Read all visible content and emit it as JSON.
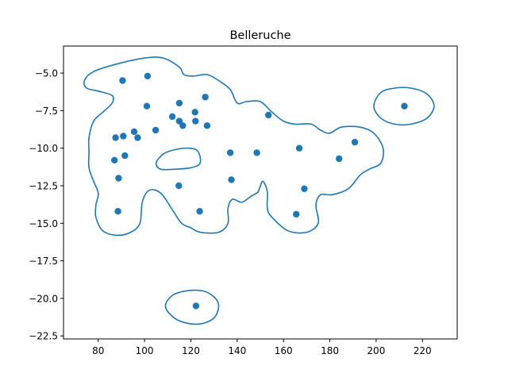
{
  "chart_data": {
    "type": "scatter",
    "title": "Belleruche",
    "xlabel": "",
    "ylabel": "",
    "xlim": [
      65,
      235
    ],
    "ylim": [
      -22.7,
      -3.2
    ],
    "xticks": [
      80,
      100,
      120,
      140,
      160,
      180,
      200,
      220
    ],
    "xtick_labels": [
      "80",
      "100",
      "120",
      "140",
      "160",
      "180",
      "200",
      "220"
    ],
    "yticks": [
      -5.0,
      -7.5,
      -10.0,
      -12.5,
      -15.0,
      -17.5,
      -20.0,
      -22.5
    ],
    "ytick_labels": [
      "−5.0",
      "−7.5",
      "−10.0",
      "−12.5",
      "−15.0",
      "−17.5",
      "−20.0",
      "−22.5"
    ],
    "grid": false,
    "colors": {
      "series": "#1f77b4"
    },
    "points": [
      {
        "x": 90.5,
        "y": -5.5
      },
      {
        "x": 101.3,
        "y": -5.2
      },
      {
        "x": 101.0,
        "y": -7.2
      },
      {
        "x": 115.0,
        "y": -7.0
      },
      {
        "x": 126.2,
        "y": -6.6
      },
      {
        "x": 112.0,
        "y": -7.9
      },
      {
        "x": 121.8,
        "y": -7.6
      },
      {
        "x": 122.0,
        "y": -8.2
      },
      {
        "x": 115.0,
        "y": -8.2
      },
      {
        "x": 116.5,
        "y": -8.5
      },
      {
        "x": 127.0,
        "y": -8.5
      },
      {
        "x": 104.8,
        "y": -8.8
      },
      {
        "x": 95.5,
        "y": -8.9
      },
      {
        "x": 97.0,
        "y": -9.3
      },
      {
        "x": 90.8,
        "y": -9.2
      },
      {
        "x": 87.5,
        "y": -9.3
      },
      {
        "x": 91.5,
        "y": -10.5
      },
      {
        "x": 87.0,
        "y": -10.8
      },
      {
        "x": 88.8,
        "y": -12.0
      },
      {
        "x": 114.8,
        "y": -12.5
      },
      {
        "x": 137.0,
        "y": -10.3
      },
      {
        "x": 148.5,
        "y": -10.3
      },
      {
        "x": 137.5,
        "y": -12.1
      },
      {
        "x": 153.5,
        "y": -7.8
      },
      {
        "x": 166.8,
        "y": -10.0
      },
      {
        "x": 184.0,
        "y": -10.7
      },
      {
        "x": 190.8,
        "y": -9.6
      },
      {
        "x": 169.0,
        "y": -12.7
      },
      {
        "x": 165.5,
        "y": -14.4
      },
      {
        "x": 88.5,
        "y": -14.2
      },
      {
        "x": 123.8,
        "y": -14.2
      },
      {
        "x": 212.2,
        "y": -7.2
      },
      {
        "x": 122.2,
        "y": -20.5
      }
    ],
    "contours": [
      [
        [
          74,
          -5.5
        ],
        [
          78,
          -4.9
        ],
        [
          88,
          -4.4
        ],
        [
          100,
          -4.0
        ],
        [
          108,
          -4.0
        ],
        [
          115,
          -4.6
        ],
        [
          117,
          -5.1
        ],
        [
          121,
          -5.2
        ],
        [
          127,
          -5.1
        ],
        [
          132,
          -5.5
        ],
        [
          137,
          -6.1
        ],
        [
          140,
          -7.0
        ],
        [
          144,
          -6.9
        ],
        [
          150,
          -6.9
        ],
        [
          155,
          -7.6
        ],
        [
          160,
          -8.2
        ],
        [
          165,
          -8.4
        ],
        [
          172,
          -8.4
        ],
        [
          176,
          -8.8
        ],
        [
          180,
          -9.0
        ],
        [
          185,
          -8.6
        ],
        [
          193,
          -8.6
        ],
        [
          199,
          -9.0
        ],
        [
          203,
          -10.0
        ],
        [
          202,
          -11.0
        ],
        [
          197,
          -11.4
        ],
        [
          193,
          -11.8
        ],
        [
          188,
          -12.7
        ],
        [
          181,
          -13.1
        ],
        [
          176,
          -13.1
        ],
        [
          174,
          -13.8
        ],
        [
          175,
          -15.0
        ],
        [
          170,
          -15.6
        ],
        [
          162,
          -15.5
        ],
        [
          155,
          -14.6
        ],
        [
          153,
          -14.0
        ],
        [
          153,
          -12.9
        ],
        [
          151,
          -12.2
        ],
        [
          149,
          -12.9
        ],
        [
          146,
          -13.2
        ],
        [
          142,
          -13.6
        ],
        [
          138,
          -13.4
        ],
        [
          136,
          -14.0
        ],
        [
          136,
          -15.0
        ],
        [
          132,
          -15.6
        ],
        [
          124,
          -15.6
        ],
        [
          120,
          -15.3
        ],
        [
          116,
          -15.0
        ],
        [
          112,
          -14.1
        ],
        [
          107,
          -13.0
        ],
        [
          102,
          -12.8
        ],
        [
          99,
          -13.6
        ],
        [
          98,
          -15.0
        ],
        [
          94,
          -15.6
        ],
        [
          88,
          -15.8
        ],
        [
          82,
          -15.5
        ],
        [
          79,
          -14.6
        ],
        [
          79,
          -13.8
        ],
        [
          80,
          -13.0
        ],
        [
          78,
          -12.2
        ],
        [
          76,
          -11.3
        ],
        [
          76,
          -10.2
        ],
        [
          76,
          -9.3
        ],
        [
          78,
          -8.2
        ],
        [
          82,
          -7.6
        ],
        [
          86,
          -7.0
        ],
        [
          86,
          -6.5
        ],
        [
          80,
          -6.2
        ],
        [
          75,
          -6.0
        ],
        [
          74,
          -5.5
        ]
      ],
      [
        [
          105,
          -11.0
        ],
        [
          108,
          -10.4
        ],
        [
          113,
          -10.1
        ],
        [
          119,
          -10.0
        ],
        [
          123,
          -10.2
        ],
        [
          124,
          -11.0
        ],
        [
          120,
          -11.3
        ],
        [
          113,
          -11.4
        ],
        [
          107,
          -11.4
        ],
        [
          105,
          -11.0
        ]
      ],
      [
        [
          199,
          -7.2
        ],
        [
          202,
          -6.3
        ],
        [
          208,
          -6.0
        ],
        [
          215,
          -6.0
        ],
        [
          222,
          -6.4
        ],
        [
          225,
          -7.2
        ],
        [
          222,
          -8.0
        ],
        [
          215,
          -8.4
        ],
        [
          208,
          -8.4
        ],
        [
          202,
          -8.0
        ],
        [
          199,
          -7.2
        ]
      ],
      [
        [
          109,
          -20.5
        ],
        [
          112,
          -19.8
        ],
        [
          118,
          -19.5
        ],
        [
          125,
          -19.5
        ],
        [
          130,
          -19.9
        ],
        [
          132,
          -20.5
        ],
        [
          130,
          -21.3
        ],
        [
          124,
          -21.7
        ],
        [
          117,
          -21.6
        ],
        [
          112,
          -21.2
        ],
        [
          109,
          -20.5
        ]
      ]
    ]
  }
}
